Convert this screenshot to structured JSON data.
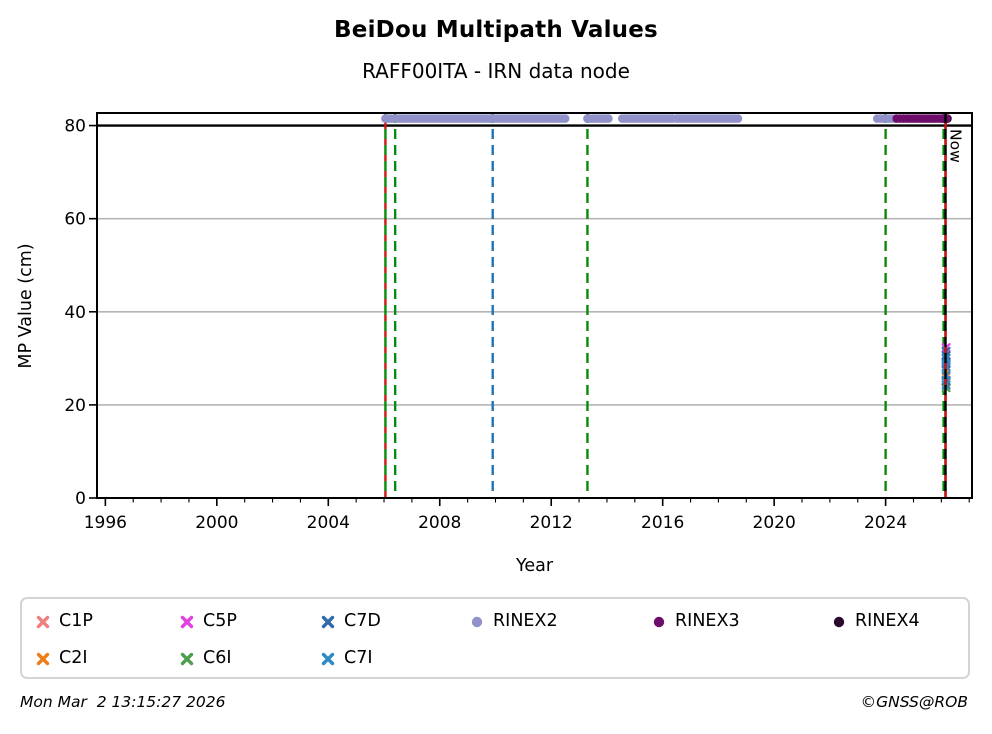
{
  "chart_data": {
    "type": "scatter",
    "title": "BeiDou Multipath Values",
    "subtitle": "RAFF00ITA - IRN data node",
    "xlabel": "Year",
    "ylabel": "MP Value (cm)",
    "xlim": [
      1995.7,
      2027.1
    ],
    "ylim": [
      0,
      82.7
    ],
    "xticks": [
      1996,
      2000,
      2004,
      2008,
      2012,
      2016,
      2020,
      2024
    ],
    "xminor_step": 1,
    "yticks": [
      0,
      20,
      40,
      60,
      80
    ],
    "grid": {
      "axis": "y",
      "color": "#b5b5b5",
      "values": [
        20,
        40,
        60
      ]
    },
    "threshold_line": {
      "y": 80,
      "color": "#000000"
    },
    "now_line": {
      "x": 2026.15,
      "label": "Now",
      "color": "#000000"
    },
    "event_lines": [
      {
        "x": 2006.05,
        "color": "#0a8a0a",
        "style": "dashed",
        "layer": "under"
      },
      {
        "x": 2006.05,
        "color": "#d21414",
        "style": "dashed",
        "layer": "over",
        "dash_offset": true
      },
      {
        "x": 2006.4,
        "color": "#0a8a0a",
        "style": "dashed",
        "layer": "under"
      },
      {
        "x": 2009.9,
        "color": "#2272b4",
        "style": "dashed",
        "layer": "under"
      },
      {
        "x": 2013.3,
        "color": "#0a8a0a",
        "style": "dashed",
        "layer": "under"
      },
      {
        "x": 2024.0,
        "color": "#0a8a0a",
        "style": "dashed",
        "layer": "under"
      },
      {
        "x": 2026.08,
        "color": "#0a8a0a",
        "style": "dashed",
        "layer": "under"
      },
      {
        "x": 2026.15,
        "color": "#d21414",
        "style": "dashed",
        "layer": "over",
        "dash_offset": true
      }
    ],
    "series": [
      {
        "name": "RINEX2",
        "marker": "circle",
        "color": "#9292cb",
        "cap_y": 81.5,
        "x_segments": [
          [
            2006.05,
            2012.5
          ],
          [
            2013.3,
            2014.05
          ],
          [
            2014.55,
            2016.35
          ],
          [
            2016.5,
            2018.7
          ],
          [
            2023.7,
            2024.35
          ]
        ]
      },
      {
        "name": "RINEX4",
        "marker": "circle",
        "color": "#2c0a2e",
        "cap_y": 81.5,
        "x_segments": [
          [
            2026.1,
            2026.22
          ]
        ]
      },
      {
        "name": "RINEX3",
        "marker": "circle",
        "color": "#6e0c6c",
        "cap_y": 81.5,
        "x_segments": [
          [
            2024.4,
            2024.75
          ],
          [
            2024.85,
            2026.18
          ]
        ]
      },
      {
        "name": "C1P",
        "marker": "x",
        "color": "#f08080",
        "points": [
          {
            "x": 2026.17,
            "y": 26.7
          }
        ]
      },
      {
        "name": "C2I",
        "marker": "x",
        "color": "#ee7d18",
        "points": [
          {
            "x": 2026.17,
            "y": 27.4
          },
          {
            "x": 2026.17,
            "y": 24.9
          }
        ]
      },
      {
        "name": "C5P",
        "marker": "x",
        "color": "#e240e2",
        "points": [
          {
            "x": 2026.17,
            "y": 32.3
          },
          {
            "x": 2026.17,
            "y": 29.3
          }
        ]
      },
      {
        "name": "C6I",
        "marker": "x",
        "color": "#4f9d4f",
        "points": [
          {
            "x": 2026.17,
            "y": 23.7
          }
        ]
      },
      {
        "name": "C7D",
        "marker": "x",
        "color": "#2e6ba8",
        "points": [
          {
            "x": 2026.17,
            "y": 31.5
          },
          {
            "x": 2026.17,
            "y": 30.6
          },
          {
            "x": 2026.17,
            "y": 28.9
          },
          {
            "x": 2026.17,
            "y": 25.2
          }
        ]
      },
      {
        "name": "C7I",
        "marker": "x",
        "color": "#2d8ac2",
        "points": [
          {
            "x": 2026.17,
            "y": 30.0
          },
          {
            "x": 2026.17,
            "y": 28.2
          },
          {
            "x": 2026.17,
            "y": 26.3
          },
          {
            "x": 2026.17,
            "y": 24.3
          }
        ]
      }
    ]
  },
  "legend": {
    "items": [
      {
        "label": "C1P",
        "col": 0,
        "row": 0
      },
      {
        "label": "C2I",
        "col": 0,
        "row": 1
      },
      {
        "label": "C5P",
        "col": 1,
        "row": 0
      },
      {
        "label": "C6I",
        "col": 1,
        "row": 1
      },
      {
        "label": "C7D",
        "col": 2,
        "row": 0
      },
      {
        "label": "C7I",
        "col": 2,
        "row": 1
      },
      {
        "label": "RINEX2",
        "col": 3,
        "row": 0
      },
      {
        "label": "RINEX3",
        "col": 4,
        "row": 0
      },
      {
        "label": "RINEX4",
        "col": 5,
        "row": 0
      }
    ]
  },
  "footer": {
    "timestamp": "Mon Mar  2 13:15:27 2026",
    "copyright": "©GNSS@ROB"
  }
}
